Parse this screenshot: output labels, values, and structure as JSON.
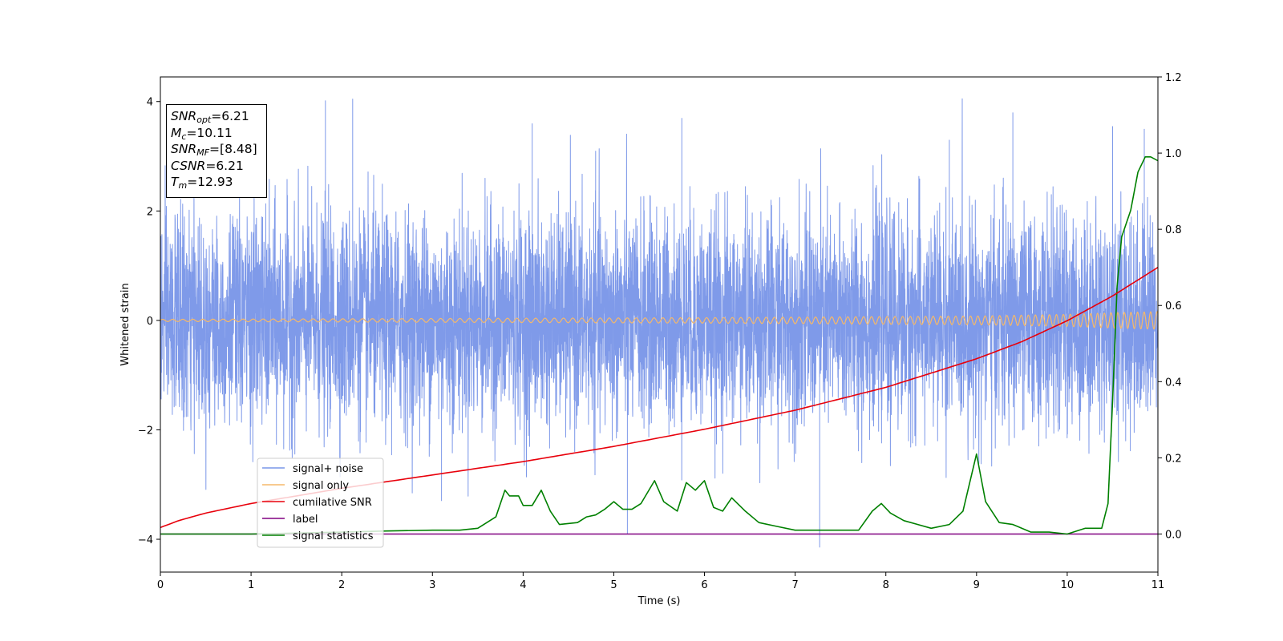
{
  "chart_data": {
    "type": "line",
    "xlabel": "Time (s)",
    "ylabel": "Whitened strain",
    "xlim": [
      0,
      11
    ],
    "ylim": [
      -4.6,
      4.45
    ],
    "ylim_right": [
      -0.1,
      1.2
    ],
    "grid": false,
    "legend_position": "lower-left",
    "x_ticks": [
      "0",
      "1",
      "2",
      "3",
      "4",
      "5",
      "6",
      "7",
      "8",
      "9",
      "10",
      "11"
    ],
    "y_ticks": [
      "4",
      "2",
      "0",
      "−2",
      "−4"
    ],
    "y_right_ticks": [
      "1.2",
      "1.0",
      "0.8",
      "0.6",
      "0.4",
      "0.2",
      "0.0"
    ],
    "annotation": {
      "snr_opt": {
        "label": "SNR",
        "sub": "opt",
        "value": "=6.21"
      },
      "mc": {
        "label": "M",
        "sub": "c",
        "value": "=10.11"
      },
      "snr_mf": {
        "label": "SNR",
        "sub": "MF",
        "value": "=[8.48]"
      },
      "csnr": {
        "label": "CSNR",
        "value": "=6.21"
      },
      "tm": {
        "label": "T",
        "sub": "m",
        "value": "=12.93"
      }
    },
    "series": [
      {
        "name": "signal+ noise",
        "axis": "left",
        "color": "#7895e8",
        "description_stats": {
          "std": 0.95,
          "min": -4.15,
          "max": 4.05
        },
        "x": [
          0.0,
          1.82,
          2.12,
          3.1,
          4.1,
          4.8,
          5.15,
          5.75,
          7.27,
          8.7,
          9.4,
          10.5,
          10.85,
          11.0
        ],
        "y": [
          0.1,
          4.02,
          4.05,
          -3.3,
          3.6,
          3.1,
          -3.9,
          3.7,
          -4.15,
          3.3,
          3.8,
          3.55,
          3.5,
          1.5
        ]
      },
      {
        "name": "signal only",
        "axis": "left",
        "color": "#f5b86a",
        "x": [
          0,
          2,
          4,
          6,
          8,
          9,
          10,
          10.5,
          11
        ],
        "amplitude": [
          0.02,
          0.03,
          0.04,
          0.05,
          0.07,
          0.08,
          0.11,
          0.14,
          0.16
        ]
      },
      {
        "name": "cumilative SNR",
        "axis": "right",
        "color": "#e8000b",
        "x": [
          0,
          0.2,
          0.5,
          1,
          2,
          3,
          4,
          5,
          6,
          7,
          8,
          9,
          9.5,
          10,
          10.5,
          11
        ],
        "y": [
          0.017,
          0.035,
          0.055,
          0.08,
          0.12,
          0.155,
          0.19,
          0.23,
          0.275,
          0.325,
          0.385,
          0.46,
          0.505,
          0.56,
          0.625,
          0.7
        ]
      },
      {
        "name": "label",
        "axis": "right",
        "color": "#800080",
        "x": [
          0,
          11
        ],
        "y": [
          0.0,
          0.0
        ]
      },
      {
        "name": "signal statistics",
        "axis": "right",
        "color": "#008000",
        "x": [
          0,
          1,
          2,
          2.5,
          3,
          3.3,
          3.5,
          3.6,
          3.7,
          3.8,
          3.85,
          3.95,
          4.0,
          4.1,
          4.2,
          4.3,
          4.4,
          4.6,
          4.7,
          4.8,
          4.9,
          5.0,
          5.1,
          5.2,
          5.3,
          5.45,
          5.55,
          5.7,
          5.8,
          5.9,
          6.0,
          6.1,
          6.2,
          6.3,
          6.45,
          6.6,
          6.8,
          7.0,
          7.3,
          7.7,
          7.85,
          7.95,
          8.05,
          8.2,
          8.5,
          8.7,
          8.85,
          9.0,
          9.1,
          9.25,
          9.4,
          9.6,
          9.8,
          10.0,
          10.2,
          10.38,
          10.45,
          10.5,
          10.55,
          10.6,
          10.7,
          10.78,
          10.86,
          10.92,
          11.0
        ],
        "y": [
          0.0,
          0.0,
          0.005,
          0.008,
          0.01,
          0.01,
          0.015,
          0.03,
          0.045,
          0.115,
          0.1,
          0.1,
          0.075,
          0.075,
          0.115,
          0.06,
          0.025,
          0.03,
          0.045,
          0.05,
          0.065,
          0.085,
          0.065,
          0.065,
          0.08,
          0.14,
          0.085,
          0.06,
          0.135,
          0.115,
          0.14,
          0.07,
          0.06,
          0.095,
          0.06,
          0.03,
          0.02,
          0.01,
          0.01,
          0.01,
          0.06,
          0.08,
          0.055,
          0.035,
          0.015,
          0.025,
          0.06,
          0.21,
          0.085,
          0.03,
          0.025,
          0.005,
          0.005,
          0.0,
          0.015,
          0.015,
          0.08,
          0.35,
          0.65,
          0.78,
          0.85,
          0.95,
          0.99,
          0.99,
          0.98
        ]
      }
    ]
  }
}
